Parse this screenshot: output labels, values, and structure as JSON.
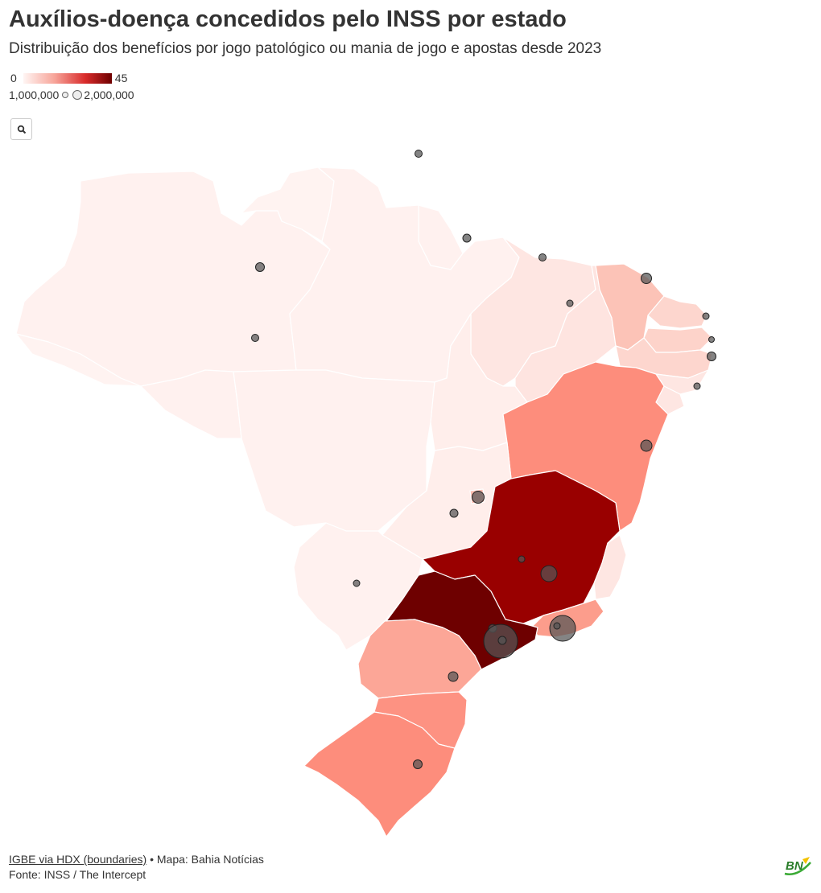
{
  "header": {
    "title": "Auxílios-doença concedidos pelo INSS por estado",
    "subtitle": "Distribuição dos benefícios por jogo patológico ou mania de jogo e apostas desde 2023"
  },
  "legend": {
    "color_min": "0",
    "color_max": "45",
    "size_min": "1,000,000",
    "size_max": "2,000,000"
  },
  "toolbar": {
    "zoom_icon": "search-icon"
  },
  "colors": {
    "scale_low": "#fff5f3",
    "scale_mid": "#f7a59a",
    "scale_high": "#6e0000",
    "bubble": "#555555"
  },
  "footer": {
    "source_link": "IGBE via HDX (boundaries)",
    "credit": " • Mapa: Bahia Notícias",
    "source": "Fonte: INSS / The Intercept"
  },
  "logo": {
    "text": "BN"
  }
}
